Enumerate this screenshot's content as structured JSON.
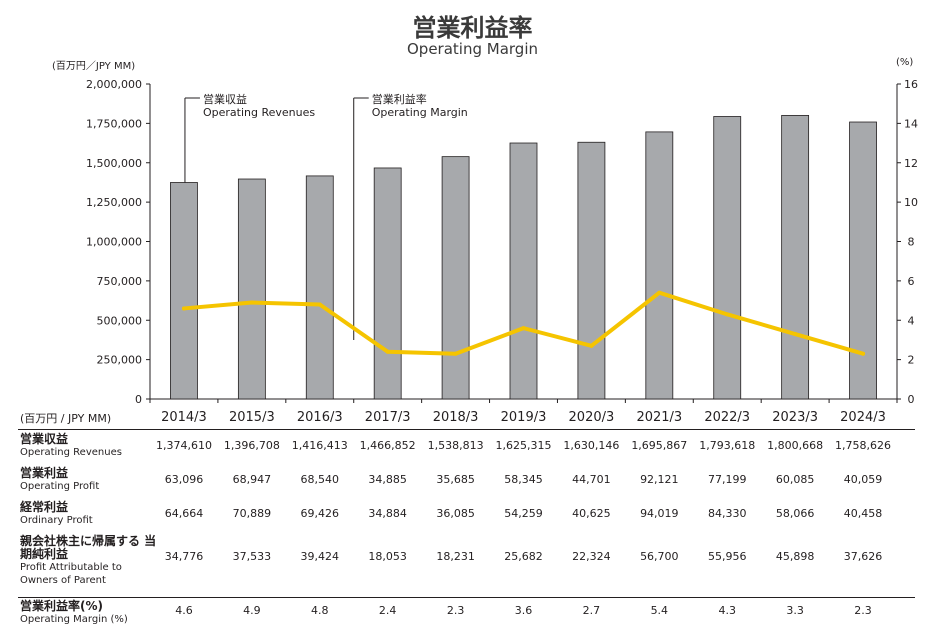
{
  "title_jp": "営業利益率",
  "title_en": "Operating Margin",
  "unit_left": "(百万円／JPY MM)",
  "unit_right": "(%)",
  "chart_data": {
    "type": "bar+line",
    "categories": [
      "2014/3",
      "2015/3",
      "2016/3",
      "2017/3",
      "2018/3",
      "2019/3",
      "2020/3",
      "2021/3",
      "2022/3",
      "2023/3",
      "2024/3"
    ],
    "series": [
      {
        "axis": "left",
        "type": "bar",
        "values": [
          1374610,
          1396708,
          1416413,
          1466852,
          1538813,
          1625315,
          1630146,
          1695867,
          1793618,
          1800668,
          1758626
        ]
      },
      {
        "axis": "right",
        "type": "line",
        "values": [
          4.6,
          4.9,
          4.8,
          2.4,
          2.3,
          3.6,
          2.7,
          5.4,
          4.3,
          3.3,
          2.3
        ]
      }
    ],
    "ylim_left": [
      0,
      2000000
    ],
    "ylim_right": [
      0,
      16
    ],
    "yticks_left": [
      "0",
      "250,000",
      "500,000",
      "750,000",
      "1,000,000",
      "1,250,000",
      "1,500,000",
      "1,750,000",
      "2,000,000"
    ],
    "yticks_right": [
      "0",
      "2",
      "4",
      "6",
      "8",
      "10",
      "12",
      "14",
      "16"
    ],
    "annotations": [
      {
        "jp": "営業収益",
        "en": "Operating Revenues"
      },
      {
        "jp": "営業利益率",
        "en": "Operating Margin"
      }
    ],
    "colors": {
      "bar": "#a7a9ac",
      "bar_edge": "#231f20",
      "line": "#f5c400"
    },
    "grid": false
  },
  "table": {
    "unit": "(百万円 / JPY MM)",
    "rows": [
      {
        "jp": "営業収益",
        "en": "Operating Revenues",
        "values": [
          "1,374,610",
          "1,396,708",
          "1,416,413",
          "1,466,852",
          "1,538,813",
          "1,625,315",
          "1,630,146",
          "1,695,867",
          "1,793,618",
          "1,800,668",
          "1,758,626"
        ]
      },
      {
        "jp": "営業利益",
        "en": "Operating Profit",
        "values": [
          "63,096",
          "68,947",
          "68,540",
          "34,885",
          "35,685",
          "58,345",
          "44,701",
          "92,121",
          "77,199",
          "60,085",
          "40,059"
        ]
      },
      {
        "jp": "経常利益",
        "en": "Ordinary Profit",
        "values": [
          "64,664",
          "70,889",
          "69,426",
          "34,884",
          "36,085",
          "54,259",
          "40,625",
          "94,019",
          "84,330",
          "58,066",
          "40,458"
        ]
      },
      {
        "jp": "親会社株主に帰属する 当期純利益",
        "en": "Profit Attributable to Owners of Parent",
        "values": [
          "34,776",
          "37,533",
          "39,424",
          "18,053",
          "18,231",
          "25,682",
          "22,324",
          "56,700",
          "55,956",
          "45,898",
          "37,626"
        ]
      },
      {
        "jp": "営業利益率(%)",
        "en": "Operating Margin (%)",
        "values": [
          "4.6",
          "4.9",
          "4.8",
          "2.4",
          "2.3",
          "3.6",
          "2.7",
          "5.4",
          "4.3",
          "3.3",
          "2.3"
        ]
      }
    ]
  }
}
